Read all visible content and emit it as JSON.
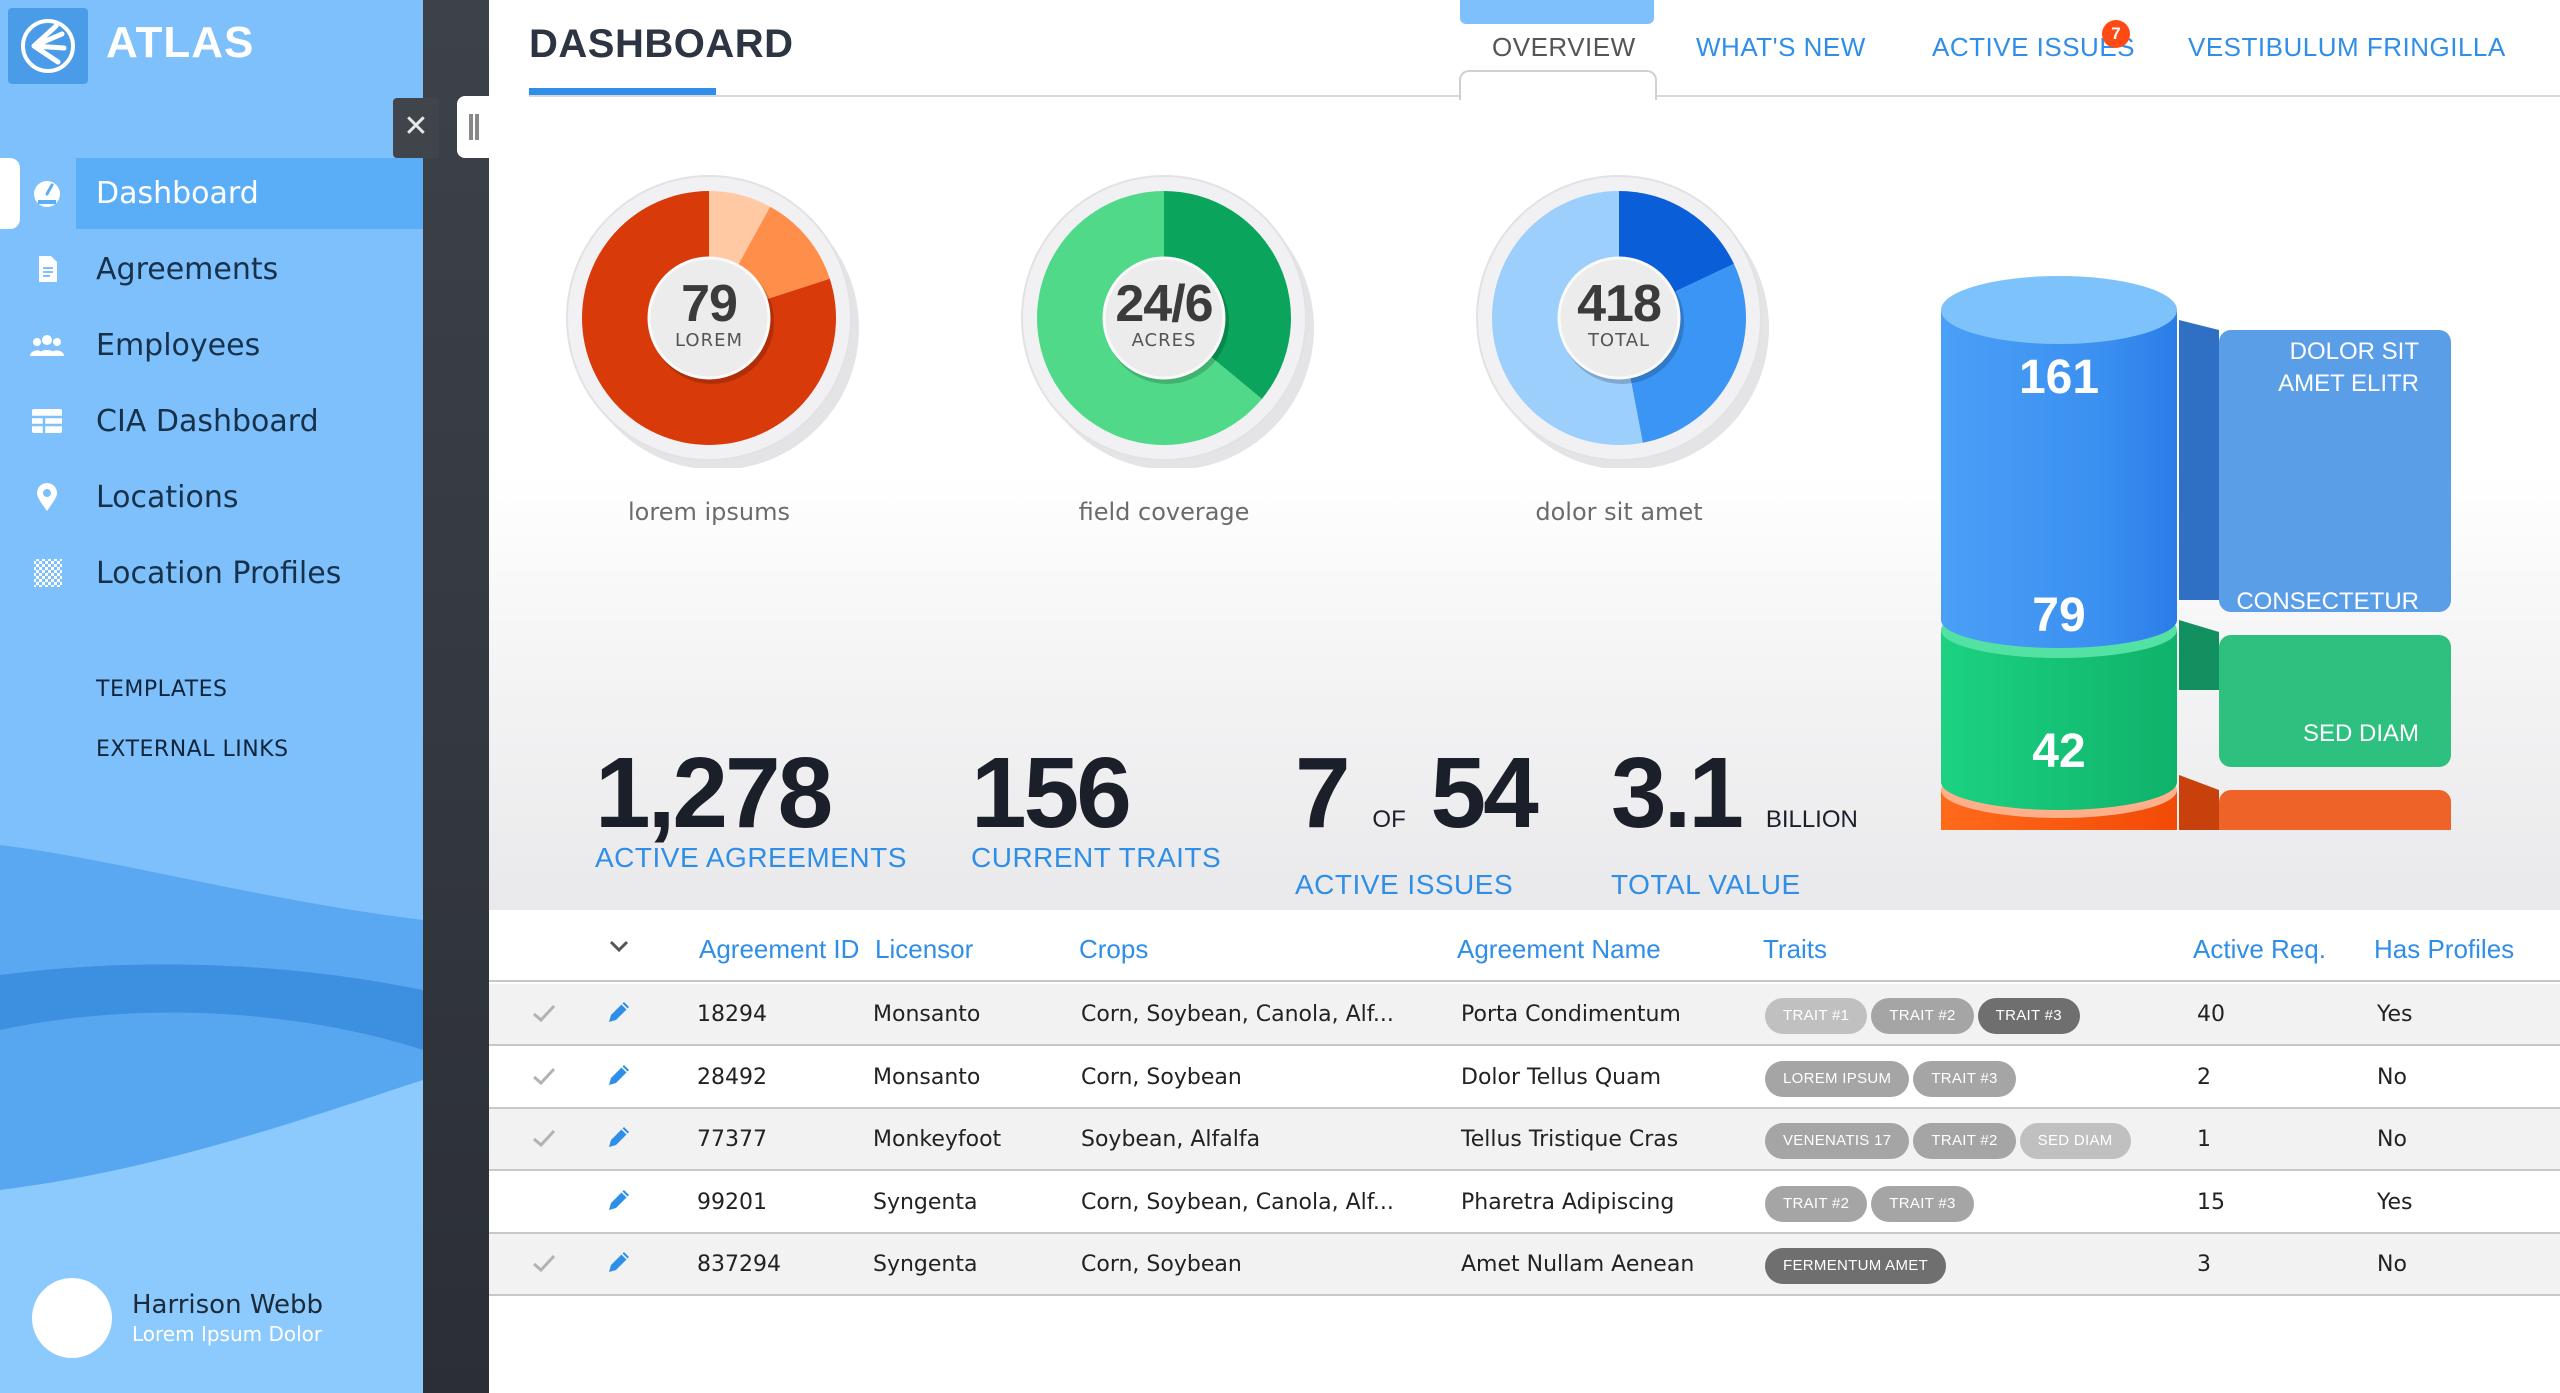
{
  "app": {
    "name": "ATLAS"
  },
  "sidebar": {
    "items": [
      {
        "label": "Dashboard",
        "icon": "dashboard-gauge-icon",
        "active": true
      },
      {
        "label": "Agreements",
        "icon": "document-icon"
      },
      {
        "label": "Employees",
        "icon": "people-icon"
      },
      {
        "label": "CIA Dashboard",
        "icon": "grid-table-icon"
      },
      {
        "label": "Locations",
        "icon": "map-pin-icon"
      },
      {
        "label": "Location Profiles",
        "icon": "checker-pattern-icon"
      }
    ],
    "links": [
      {
        "label": "TEMPLATES"
      },
      {
        "label": "EXTERNAL LINKS"
      }
    ],
    "user": {
      "name": "Harrison Webb",
      "role": "Lorem Ipsum Dolor"
    }
  },
  "header": {
    "title": "DASHBOARD",
    "tabs": [
      {
        "label": "OVERVIEW",
        "active": true
      },
      {
        "label": "WHAT'S NEW"
      },
      {
        "label": "ACTIVE ISSUES",
        "badge": "7"
      },
      {
        "label": "VESTIBULUM FRINGILLA"
      }
    ]
  },
  "donuts": [
    {
      "value": "79",
      "unit": "LOREM",
      "caption": "lorem ipsums",
      "segments": [
        0.08,
        0.12,
        0.8
      ],
      "colors": [
        "#ffc9a4",
        "#ff8e4a",
        "#d83a0a"
      ]
    },
    {
      "value": "24/6",
      "unit": "ACRES",
      "caption": "field coverage",
      "segments": [
        0.36,
        0.64
      ],
      "colors": [
        "#0aa45c",
        "#51d98a"
      ]
    },
    {
      "value": "418",
      "unit": "TOTAL",
      "caption": "dolor sit amet",
      "segments": [
        0.18,
        0.29,
        0.53
      ],
      "colors": [
        "#0a5ed8",
        "#3b95f4",
        "#9ccffc"
      ]
    }
  ],
  "stats": [
    {
      "value": "1,278",
      "label": "ACTIVE AGREEMENTS"
    },
    {
      "value": "156",
      "label": "CURRENT TRAITS"
    },
    {
      "value_a": "7",
      "of": "OF",
      "value_b": "54",
      "label": "ACTIVE ISSUES"
    },
    {
      "value": "3.1",
      "suffix": "BILLION",
      "label": "TOTAL VALUE"
    }
  ],
  "stack": {
    "segments": [
      {
        "value": "161",
        "label_lines": [
          "DOLOR SIT",
          "AMET ELITR"
        ],
        "color": "#3a92f2"
      },
      {
        "value": "79",
        "label_lines": [
          "CONSECTETUR"
        ],
        "color": "#18c47a"
      },
      {
        "value": "42",
        "label_lines": [
          "SED DIAM"
        ],
        "color": "#ff5a10"
      }
    ]
  },
  "table": {
    "columns": [
      "Agreement ID",
      "Licensor",
      "Crops",
      "Agreement Name",
      "Traits",
      "Active Req.",
      "Has Profiles"
    ],
    "rows": [
      {
        "checked": true,
        "id": "18294",
        "licensor": "Monsanto",
        "crops": "Corn, Soybean, Canola, Alf...",
        "name": "Porta Condimentum",
        "traits": [
          "TRAIT #1",
          "TRAIT #2",
          "TRAIT #3"
        ],
        "req": "40",
        "profiles": "Yes"
      },
      {
        "checked": true,
        "id": "28492",
        "licensor": "Monsanto",
        "crops": "Corn, Soybean",
        "name": "Dolor Tellus Quam",
        "traits": [
          "LOREM IPSUM",
          "TRAIT #3"
        ],
        "req": "2",
        "profiles": "No"
      },
      {
        "checked": true,
        "id": "77377",
        "licensor": "Monkeyfoot",
        "crops": "Soybean, Alfalfa",
        "name": "Tellus Tristique Cras",
        "traits": [
          "VENENATIS 17",
          "TRAIT #2",
          "SED DIAM"
        ],
        "req": "1",
        "profiles": "No"
      },
      {
        "checked": false,
        "id": "99201",
        "licensor": "Syngenta",
        "crops": "Corn, Soybean, Canola, Alf...",
        "name": "Pharetra Adipiscing",
        "traits": [
          "TRAIT #2",
          "TRAIT #3"
        ],
        "req": "15",
        "profiles": "Yes"
      },
      {
        "checked": true,
        "id": "837294",
        "licensor": "Syngenta",
        "crops": "Corn, Soybean",
        "name": "Amet Nullam Aenean",
        "traits": [
          "FERMENTUM AMET"
        ],
        "req": "3",
        "profiles": "No"
      }
    ]
  }
}
